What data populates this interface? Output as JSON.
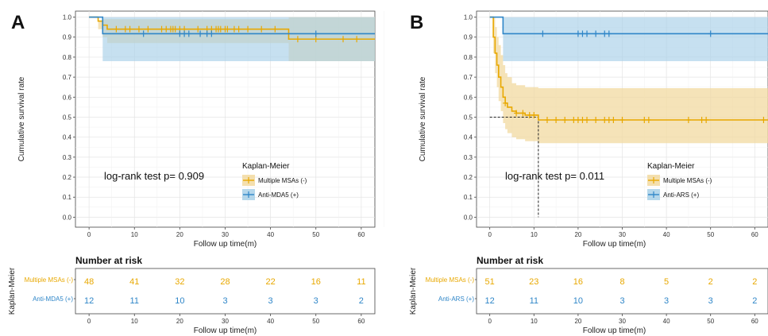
{
  "chart_data": [
    {
      "panel": "A",
      "type": "line",
      "step": true,
      "ylabel": "Cumulative survival rate",
      "xlabel": "Follow up time(m)",
      "xlim": [
        -3,
        63
      ],
      "ylim": [
        -0.05,
        1.03
      ],
      "xticks": [
        0,
        10,
        20,
        30,
        40,
        50,
        60
      ],
      "yticks": [
        0.0,
        0.1,
        0.2,
        0.3,
        0.4,
        0.5,
        0.6,
        0.7,
        0.8,
        0.9,
        1.0
      ],
      "annotation": "log-rank test p= 0.909",
      "legend_title": "Kaplan-Meier",
      "legend_position": "lower-right",
      "grid": true,
      "series": [
        {
          "name": "Multiple MSAs (-)",
          "color": "#e8a800",
          "fill": "#f2d9a0",
          "steps": [
            [
              0,
              1.0
            ],
            [
              2,
              0.98
            ],
            [
              3,
              0.96
            ],
            [
              4,
              0.94
            ],
            [
              44,
              0.89
            ]
          ],
          "end_x": 63,
          "ci_steps": [
            [
              0,
              1.0,
              1.0
            ],
            [
              2,
              0.98,
              0.94
            ],
            [
              3,
              0.99,
              0.9
            ],
            [
              4,
              0.99,
              0.87
            ],
            [
              44,
              1.0,
              0.78
            ]
          ],
          "censor": [
            6,
            8,
            9,
            11,
            13,
            16,
            17,
            18,
            18.5,
            19,
            20,
            21,
            24,
            26,
            27,
            28,
            28.5,
            29,
            30,
            30.5,
            32,
            33,
            35,
            38,
            41,
            46,
            50,
            56,
            59
          ]
        },
        {
          "name": "Anti-MDA5 (+)",
          "color": "#2f86c8",
          "fill": "#a8d0e8",
          "steps": [
            [
              0,
              1.0
            ],
            [
              3,
              0.917
            ]
          ],
          "end_x": 63,
          "ci_steps": [
            [
              0,
              1.0,
              1.0
            ],
            [
              3,
              1.0,
              0.78
            ]
          ],
          "censor": [
            12,
            20,
            21,
            22,
            24.5,
            26,
            27,
            50
          ]
        }
      ],
      "risk_table": {
        "title": "Number at risk",
        "ylabel": "Kaplan-Meier",
        "xlabel": "Follow up time(m)",
        "times": [
          0,
          10,
          20,
          30,
          40,
          50,
          60
        ],
        "rows": [
          {
            "name": "Multiple MSAs (-)",
            "color": "#e8a800",
            "values": [
              48,
              41,
              32,
              28,
              22,
              16,
              11
            ]
          },
          {
            "name": "Anti-MDA5 (+)",
            "color": "#2f86c8",
            "values": [
              12,
              11,
              10,
              3,
              3,
              3,
              2
            ]
          }
        ]
      }
    },
    {
      "panel": "B",
      "type": "line",
      "step": true,
      "ylabel": "Cumulative survival rate",
      "xlabel": "Follow up time(m)",
      "xlim": [
        -3,
        63
      ],
      "ylim": [
        -0.05,
        1.03
      ],
      "xticks": [
        0,
        10,
        20,
        30,
        40,
        50,
        60
      ],
      "yticks": [
        0.0,
        0.1,
        0.2,
        0.3,
        0.4,
        0.5,
        0.6,
        0.7,
        0.8,
        0.9,
        1.0
      ],
      "annotation": "log-rank test p= 0.011",
      "legend_title": "Kaplan-Meier",
      "legend_position": "lower-right",
      "grid": true,
      "median_line": {
        "x": 11,
        "y": 0.5
      },
      "series": [
        {
          "name": "Multiple MSAs (-)",
          "color": "#e8a800",
          "fill": "#f2d9a0",
          "steps": [
            [
              0,
              1.0
            ],
            [
              0.8,
              0.9
            ],
            [
              1.2,
              0.82
            ],
            [
              1.6,
              0.76
            ],
            [
              2,
              0.7
            ],
            [
              2.5,
              0.65
            ],
            [
              3,
              0.6
            ],
            [
              3.5,
              0.57
            ],
            [
              4,
              0.55
            ],
            [
              5,
              0.53
            ],
            [
              6,
              0.52
            ],
            [
              8,
              0.51
            ],
            [
              11,
              0.486
            ]
          ],
          "end_x": 63,
          "ci_steps": [
            [
              0,
              1.0,
              1.0
            ],
            [
              0.8,
              1.0,
              0.82
            ],
            [
              1.2,
              0.95,
              0.72
            ],
            [
              1.6,
              0.9,
              0.65
            ],
            [
              2,
              0.86,
              0.58
            ],
            [
              2.5,
              0.81,
              0.53
            ],
            [
              3,
              0.76,
              0.47
            ],
            [
              3.5,
              0.72,
              0.44
            ],
            [
              4,
              0.7,
              0.42
            ],
            [
              5,
              0.67,
              0.4
            ],
            [
              6,
              0.66,
              0.39
            ],
            [
              8,
              0.65,
              0.38
            ],
            [
              11,
              0.645,
              0.37
            ]
          ],
          "censor": [
            3.5,
            6,
            7.5,
            9,
            10,
            13,
            15,
            17,
            19,
            20,
            21,
            22,
            24,
            26,
            27,
            28,
            30,
            35,
            36,
            45,
            48,
            49,
            62
          ]
        },
        {
          "name": "Anti-ARS (+)",
          "color": "#2f86c8",
          "fill": "#a8d0e8",
          "steps": [
            [
              0,
              1.0
            ],
            [
              3,
              0.917
            ]
          ],
          "end_x": 63,
          "ci_steps": [
            [
              0,
              1.0,
              1.0
            ],
            [
              3,
              1.0,
              0.78
            ]
          ],
          "censor": [
            12,
            20,
            21,
            22,
            24,
            26,
            27,
            50
          ]
        }
      ],
      "risk_table": {
        "title": "Number at risk",
        "ylabel": "Kaplan-Meier",
        "xlabel": "Follow up time(m)",
        "times": [
          0,
          10,
          20,
          30,
          40,
          50,
          60
        ],
        "rows": [
          {
            "name": "Multiple MSAs (-)",
            "color": "#e8a800",
            "values": [
              51,
              23,
              16,
              8,
              5,
              2,
              2
            ]
          },
          {
            "name": "Anti-ARS (+)",
            "color": "#2f86c8",
            "values": [
              12,
              11,
              10,
              3,
              3,
              3,
              2
            ]
          }
        ]
      }
    }
  ]
}
